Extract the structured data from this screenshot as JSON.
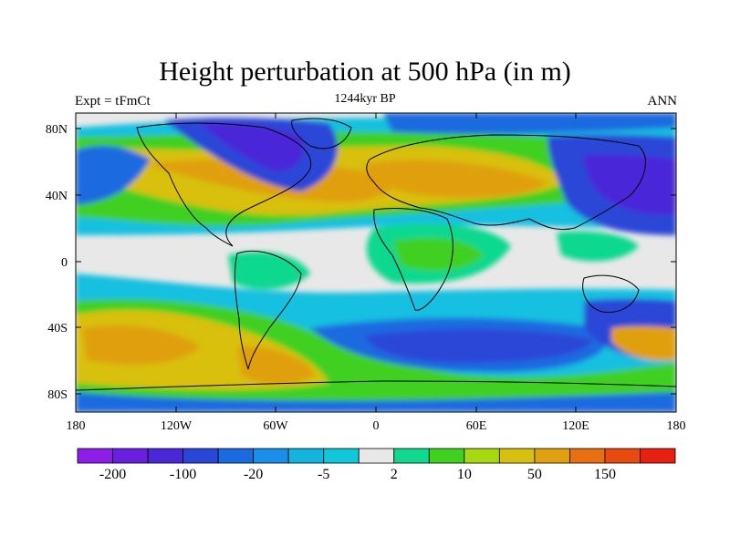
{
  "header": {
    "title": "Height perturbation at 500 hPa (in m)",
    "left_label": "Expt = tFmCt",
    "center_label": "1244kyr BP",
    "right_label": "ANN"
  },
  "axes": {
    "y_ticks": [
      "80N",
      "40N",
      "0",
      "40S",
      "80S"
    ],
    "x_ticks": [
      "180",
      "120W",
      "60W",
      "0",
      "60E",
      "120E",
      "180"
    ]
  },
  "colorbar": {
    "colors": [
      "#8c1ee8",
      "#6a1ee0",
      "#4a28d8",
      "#2a46d8",
      "#1a6ae0",
      "#1a8ee8",
      "#14b4e0",
      "#10c8d8",
      "#e8e8e8",
      "#10d890",
      "#40d020",
      "#a8d810",
      "#d8c010",
      "#e0a010",
      "#e87010",
      "#e84a10",
      "#e82010"
    ],
    "labels": [
      "-200",
      "-100",
      "-20",
      "-5",
      "2",
      "10",
      "50",
      "150"
    ]
  },
  "palette": {
    "neutral": "#e8e8e8",
    "cyan": "#14c0e0",
    "lightblue": "#1a8ee8",
    "blue": "#2a5ad8",
    "deepblue": "#3a2ed0",
    "green": "#20d070",
    "lime": "#80d418",
    "yellow": "#d8c010",
    "orange": "#e0a010",
    "darkorange": "#e88020"
  }
}
